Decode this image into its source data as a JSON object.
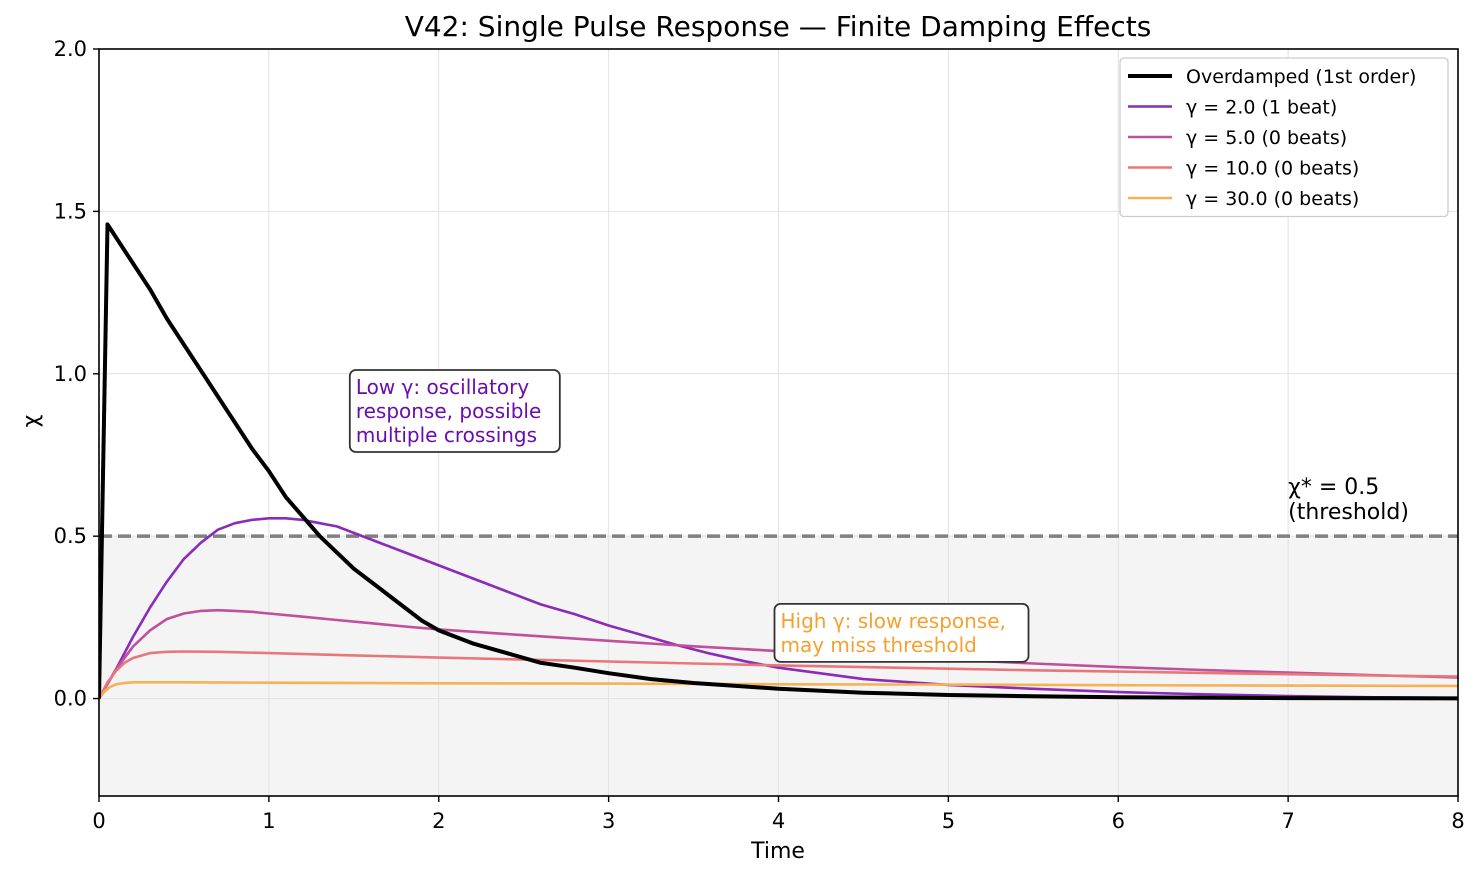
{
  "chart_data": {
    "type": "line",
    "title": "V42: Single Pulse Response — Finite Damping Effects",
    "xlabel": "Time",
    "ylabel": "χ",
    "xlim": [
      0,
      8
    ],
    "ylim": [
      -0.3,
      2.0
    ],
    "xticks": [
      0,
      1,
      2,
      3,
      4,
      5,
      6,
      7,
      8
    ],
    "xtick_labels": [
      "0",
      "1",
      "2",
      "3",
      "4",
      "5",
      "6",
      "7",
      "8"
    ],
    "yticks": [
      0.0,
      0.5,
      1.0,
      1.5,
      2.0
    ],
    "ytick_labels": [
      "0.0",
      "0.5",
      "1.0",
      "1.5",
      "2.0"
    ],
    "grid": true,
    "legend_position": "top-right",
    "threshold": {
      "value": 0.5,
      "label_line1": "χ* = 0.5",
      "label_line2": "(threshold)",
      "color": "#808080",
      "label_x": 7.0,
      "shade_color": "#f4f4f4"
    },
    "series": [
      {
        "name": "Overdamped (1st order)",
        "color": "#000000",
        "width": 4,
        "points": [
          [
            0,
            0
          ],
          [
            0.05,
            1.46
          ],
          [
            0.1,
            1.42
          ],
          [
            0.2,
            1.34
          ],
          [
            0.3,
            1.26
          ],
          [
            0.4,
            1.17
          ],
          [
            0.5,
            1.09
          ],
          [
            0.6,
            1.01
          ],
          [
            0.7,
            0.93
          ],
          [
            0.8,
            0.85
          ],
          [
            0.9,
            0.77
          ],
          [
            1.0,
            0.7
          ],
          [
            1.1,
            0.62
          ],
          [
            1.2,
            0.56
          ],
          [
            1.3,
            0.5
          ],
          [
            1.4,
            0.45
          ],
          [
            1.5,
            0.4
          ],
          [
            1.6,
            0.36
          ],
          [
            1.7,
            0.32
          ],
          [
            1.8,
            0.28
          ],
          [
            1.9,
            0.24
          ],
          [
            2.0,
            0.21
          ],
          [
            2.2,
            0.17
          ],
          [
            2.4,
            0.14
          ],
          [
            2.6,
            0.11
          ],
          [
            2.8,
            0.095
          ],
          [
            3.0,
            0.078
          ],
          [
            3.25,
            0.06
          ],
          [
            3.5,
            0.048
          ],
          [
            4.0,
            0.03
          ],
          [
            4.5,
            0.018
          ],
          [
            5.0,
            0.011
          ],
          [
            5.5,
            0.007
          ],
          [
            6.0,
            0.004
          ],
          [
            7.0,
            0.0015
          ],
          [
            8.0,
            0.0005
          ]
        ]
      },
      {
        "name": "γ = 2.0 (1 beat)",
        "color": "#8a2cb8",
        "width": 2.6,
        "points": [
          [
            0,
            0
          ],
          [
            0.1,
            0.09
          ],
          [
            0.2,
            0.19
          ],
          [
            0.3,
            0.28
          ],
          [
            0.4,
            0.36
          ],
          [
            0.5,
            0.43
          ],
          [
            0.6,
            0.48
          ],
          [
            0.7,
            0.52
          ],
          [
            0.8,
            0.54
          ],
          [
            0.9,
            0.55
          ],
          [
            1.0,
            0.555
          ],
          [
            1.1,
            0.555
          ],
          [
            1.2,
            0.55
          ],
          [
            1.3,
            0.54
          ],
          [
            1.4,
            0.53
          ],
          [
            1.5,
            0.51
          ],
          [
            1.6,
            0.49
          ],
          [
            1.7,
            0.47
          ],
          [
            1.8,
            0.45
          ],
          [
            1.9,
            0.43
          ],
          [
            2.0,
            0.41
          ],
          [
            2.2,
            0.37
          ],
          [
            2.4,
            0.33
          ],
          [
            2.6,
            0.29
          ],
          [
            2.8,
            0.26
          ],
          [
            3.0,
            0.225
          ],
          [
            3.2,
            0.195
          ],
          [
            3.4,
            0.165
          ],
          [
            3.6,
            0.138
          ],
          [
            3.8,
            0.115
          ],
          [
            4.0,
            0.095
          ],
          [
            4.5,
            0.06
          ],
          [
            5.0,
            0.042
          ],
          [
            5.5,
            0.03
          ],
          [
            6.0,
            0.02
          ],
          [
            6.5,
            0.013
          ],
          [
            7.0,
            0.008
          ],
          [
            7.5,
            0.004
          ],
          [
            8.0,
            0.002
          ]
        ]
      },
      {
        "name": "γ = 5.0 (0 beats)",
        "color": "#c0509e",
        "width": 2.6,
        "points": [
          [
            0,
            0
          ],
          [
            0.1,
            0.09
          ],
          [
            0.2,
            0.16
          ],
          [
            0.3,
            0.21
          ],
          [
            0.4,
            0.245
          ],
          [
            0.5,
            0.262
          ],
          [
            0.6,
            0.27
          ],
          [
            0.7,
            0.272
          ],
          [
            0.8,
            0.27
          ],
          [
            0.9,
            0.267
          ],
          [
            1.0,
            0.262
          ],
          [
            1.2,
            0.252
          ],
          [
            1.4,
            0.242
          ],
          [
            1.6,
            0.232
          ],
          [
            1.8,
            0.222
          ],
          [
            2.0,
            0.213
          ],
          [
            2.5,
            0.195
          ],
          [
            3.0,
            0.178
          ],
          [
            3.5,
            0.161
          ],
          [
            4.0,
            0.146
          ],
          [
            4.5,
            0.132
          ],
          [
            5.0,
            0.12
          ],
          [
            5.5,
            0.108
          ],
          [
            6.0,
            0.097
          ],
          [
            6.5,
            0.088
          ],
          [
            7.0,
            0.08
          ],
          [
            7.5,
            0.072
          ],
          [
            8.0,
            0.065
          ]
        ]
      },
      {
        "name": "γ = 10.0 (0 beats)",
        "color": "#e8777a",
        "width": 2.6,
        "points": [
          [
            0,
            0
          ],
          [
            0.05,
            0.05
          ],
          [
            0.1,
            0.085
          ],
          [
            0.15,
            0.11
          ],
          [
            0.2,
            0.125
          ],
          [
            0.3,
            0.14
          ],
          [
            0.4,
            0.144
          ],
          [
            0.5,
            0.145
          ],
          [
            0.7,
            0.144
          ],
          [
            1.0,
            0.14
          ],
          [
            1.5,
            0.133
          ],
          [
            2.0,
            0.126
          ],
          [
            2.5,
            0.12
          ],
          [
            3.0,
            0.114
          ],
          [
            3.5,
            0.108
          ],
          [
            4.0,
            0.102
          ],
          [
            4.5,
            0.097
          ],
          [
            5.0,
            0.092
          ],
          [
            5.5,
            0.087
          ],
          [
            6.0,
            0.083
          ],
          [
            6.5,
            0.079
          ],
          [
            7.0,
            0.075
          ],
          [
            7.5,
            0.071
          ],
          [
            8.0,
            0.068
          ]
        ]
      },
      {
        "name": "γ = 30.0 (0 beats)",
        "color": "#f7b054",
        "width": 2.6,
        "points": [
          [
            0,
            0
          ],
          [
            0.03,
            0.02
          ],
          [
            0.06,
            0.034
          ],
          [
            0.1,
            0.044
          ],
          [
            0.15,
            0.048
          ],
          [
            0.2,
            0.05
          ],
          [
            0.3,
            0.05
          ],
          [
            0.5,
            0.05
          ],
          [
            1.0,
            0.049
          ],
          [
            2.0,
            0.047
          ],
          [
            3.0,
            0.046
          ],
          [
            4.0,
            0.044
          ],
          [
            5.0,
            0.043
          ],
          [
            6.0,
            0.041
          ],
          [
            7.0,
            0.04
          ],
          [
            8.0,
            0.039
          ]
        ]
      }
    ],
    "annotations": [
      {
        "id": "low",
        "lines": [
          "Low γ: oscillatory",
          "response, possible",
          "multiple crossings"
        ],
        "color": "#6a0dad",
        "x": 1.5,
        "y": 0.99
      },
      {
        "id": "high",
        "lines": [
          "High γ: slow response,",
          "may miss threshold"
        ],
        "color": "#f5a030",
        "x": 4.0,
        "y": 0.27
      }
    ]
  }
}
